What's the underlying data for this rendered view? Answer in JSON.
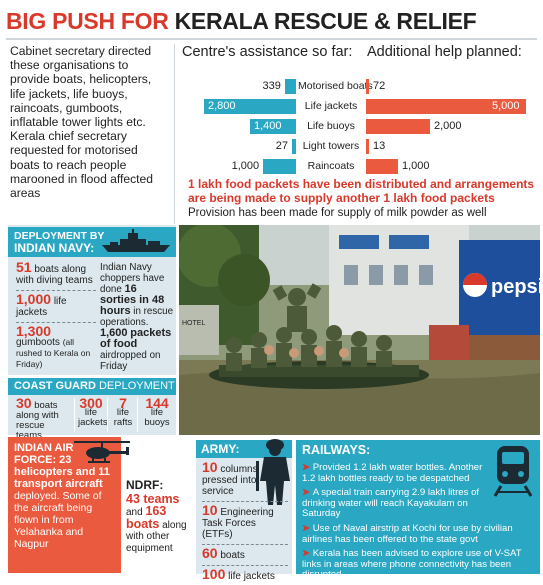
{
  "headline": {
    "part1": "BIG PUSH FOR",
    "part2": "KERALA RESCUE & RELIEF"
  },
  "intro": {
    "text1": "Cabinet secretary directed these organisations to provide boats, helicopters, life jackets, life buoys, raincoats, gumboots, inflatable tower lights etc.",
    "text2": "Kerala chief secretary requested for motorised boats to reach people marooned in flood affected areas"
  },
  "assistance": {
    "left_title": "Centre's assistance so far:",
    "right_title": "Additional help planned:",
    "rows": [
      {
        "category": "Motorised boats",
        "centre": 339,
        "centre_label": "339",
        "planned": 72,
        "planned_label": "72"
      },
      {
        "category": "Life jackets",
        "centre": 2800,
        "centre_label": "2,800",
        "planned": 5000,
        "planned_label": "5,000"
      },
      {
        "category": "Life buoys",
        "centre": 1400,
        "centre_label": "1,400",
        "planned": 2000,
        "planned_label": "2,000"
      },
      {
        "category": "Light towers",
        "centre": 27,
        "centre_label": "27",
        "planned": 13,
        "planned_label": "13"
      },
      {
        "category": "Raincoats",
        "centre": 1000,
        "centre_label": "1,000",
        "planned": 1000,
        "planned_label": "1,000"
      }
    ]
  },
  "food_note": "1 lakh food packets have been distributed and arrangements are being made to supply another 1 lakh food packets",
  "milk_note": "Provision has been made for supply of milk powder as well",
  "navy": {
    "heading_prefix": "DEPLOYMENT BY",
    "heading": "INDIAN NAVY:",
    "boats_num": "51",
    "boats_text": "boats along with diving teams",
    "jackets_num": "1,000",
    "jackets_text": "life jackets",
    "gumboots_num": "1,300",
    "gumboots_text": "gumboots",
    "gumboots_note": "(all rushed to Kerala on Friday)",
    "choppers_text1": "Indian Navy choppers have done",
    "choppers_num": "16",
    "choppers_bold": "sorties in 48 hours",
    "choppers_text2": "in rescue operations.",
    "food_num": "1,600",
    "food_bold": "packets of food",
    "food_text": "airdropped on Friday"
  },
  "coast_guard": {
    "heading_bold": "COAST GUARD",
    "heading_rest": "DEPLOYMENT",
    "items": [
      {
        "num": "30",
        "text": "boats along with rescue teams"
      },
      {
        "num": "300",
        "text": "life jackets"
      },
      {
        "num": "7",
        "text": "life rafts"
      },
      {
        "num": "144",
        "text": "life buoys"
      }
    ]
  },
  "iaf": {
    "heading": "INDIAN AIR FORCE:",
    "heli_num": "23",
    "heli_text": "helicopters and",
    "aircraft_num": "11",
    "aircraft_text": "transport aircraft",
    "rest": "deployed. Some of the aircraft being flown in from Yelahanka and Nagpur"
  },
  "ndrf": {
    "heading": "NDRF:",
    "teams": "43 teams",
    "and": "and",
    "boats_num": "163",
    "boats_bold": "boats",
    "boats_text": "along with other equipment"
  },
  "army": {
    "heading": "ARMY:",
    "items": [
      {
        "num": "10",
        "text": "columns pressed into service"
      },
      {
        "num": "10",
        "text": "Engineering Task Forces (ETFs)"
      },
      {
        "num": "60",
        "text": "boats"
      },
      {
        "num": "100",
        "text": "life jackets"
      }
    ]
  },
  "railways": {
    "heading": "RAILWAYS:",
    "items": [
      "Provided 1.2 lakh water bottles. Another 1.2 lakh bottles ready to be despatched",
      "A special train carrying 2.9 lakh litres of drinking water will reach Kayakulam on Saturday",
      "Use of Naval airstrip at Kochi for use by civilian airlines has been offered to the state govt",
      "Kerala has been advised to explore use of V-SAT links in areas where phone connectivity has been disrupted"
    ]
  },
  "photo": {
    "sign_text": "pepsi",
    "hotel_text": "HOTEL"
  },
  "colors": {
    "accent_red": "#d8392b",
    "teal": "#2aa7c2",
    "bar_red": "#ea5a3f",
    "panel_blue": "#dce8ee"
  }
}
